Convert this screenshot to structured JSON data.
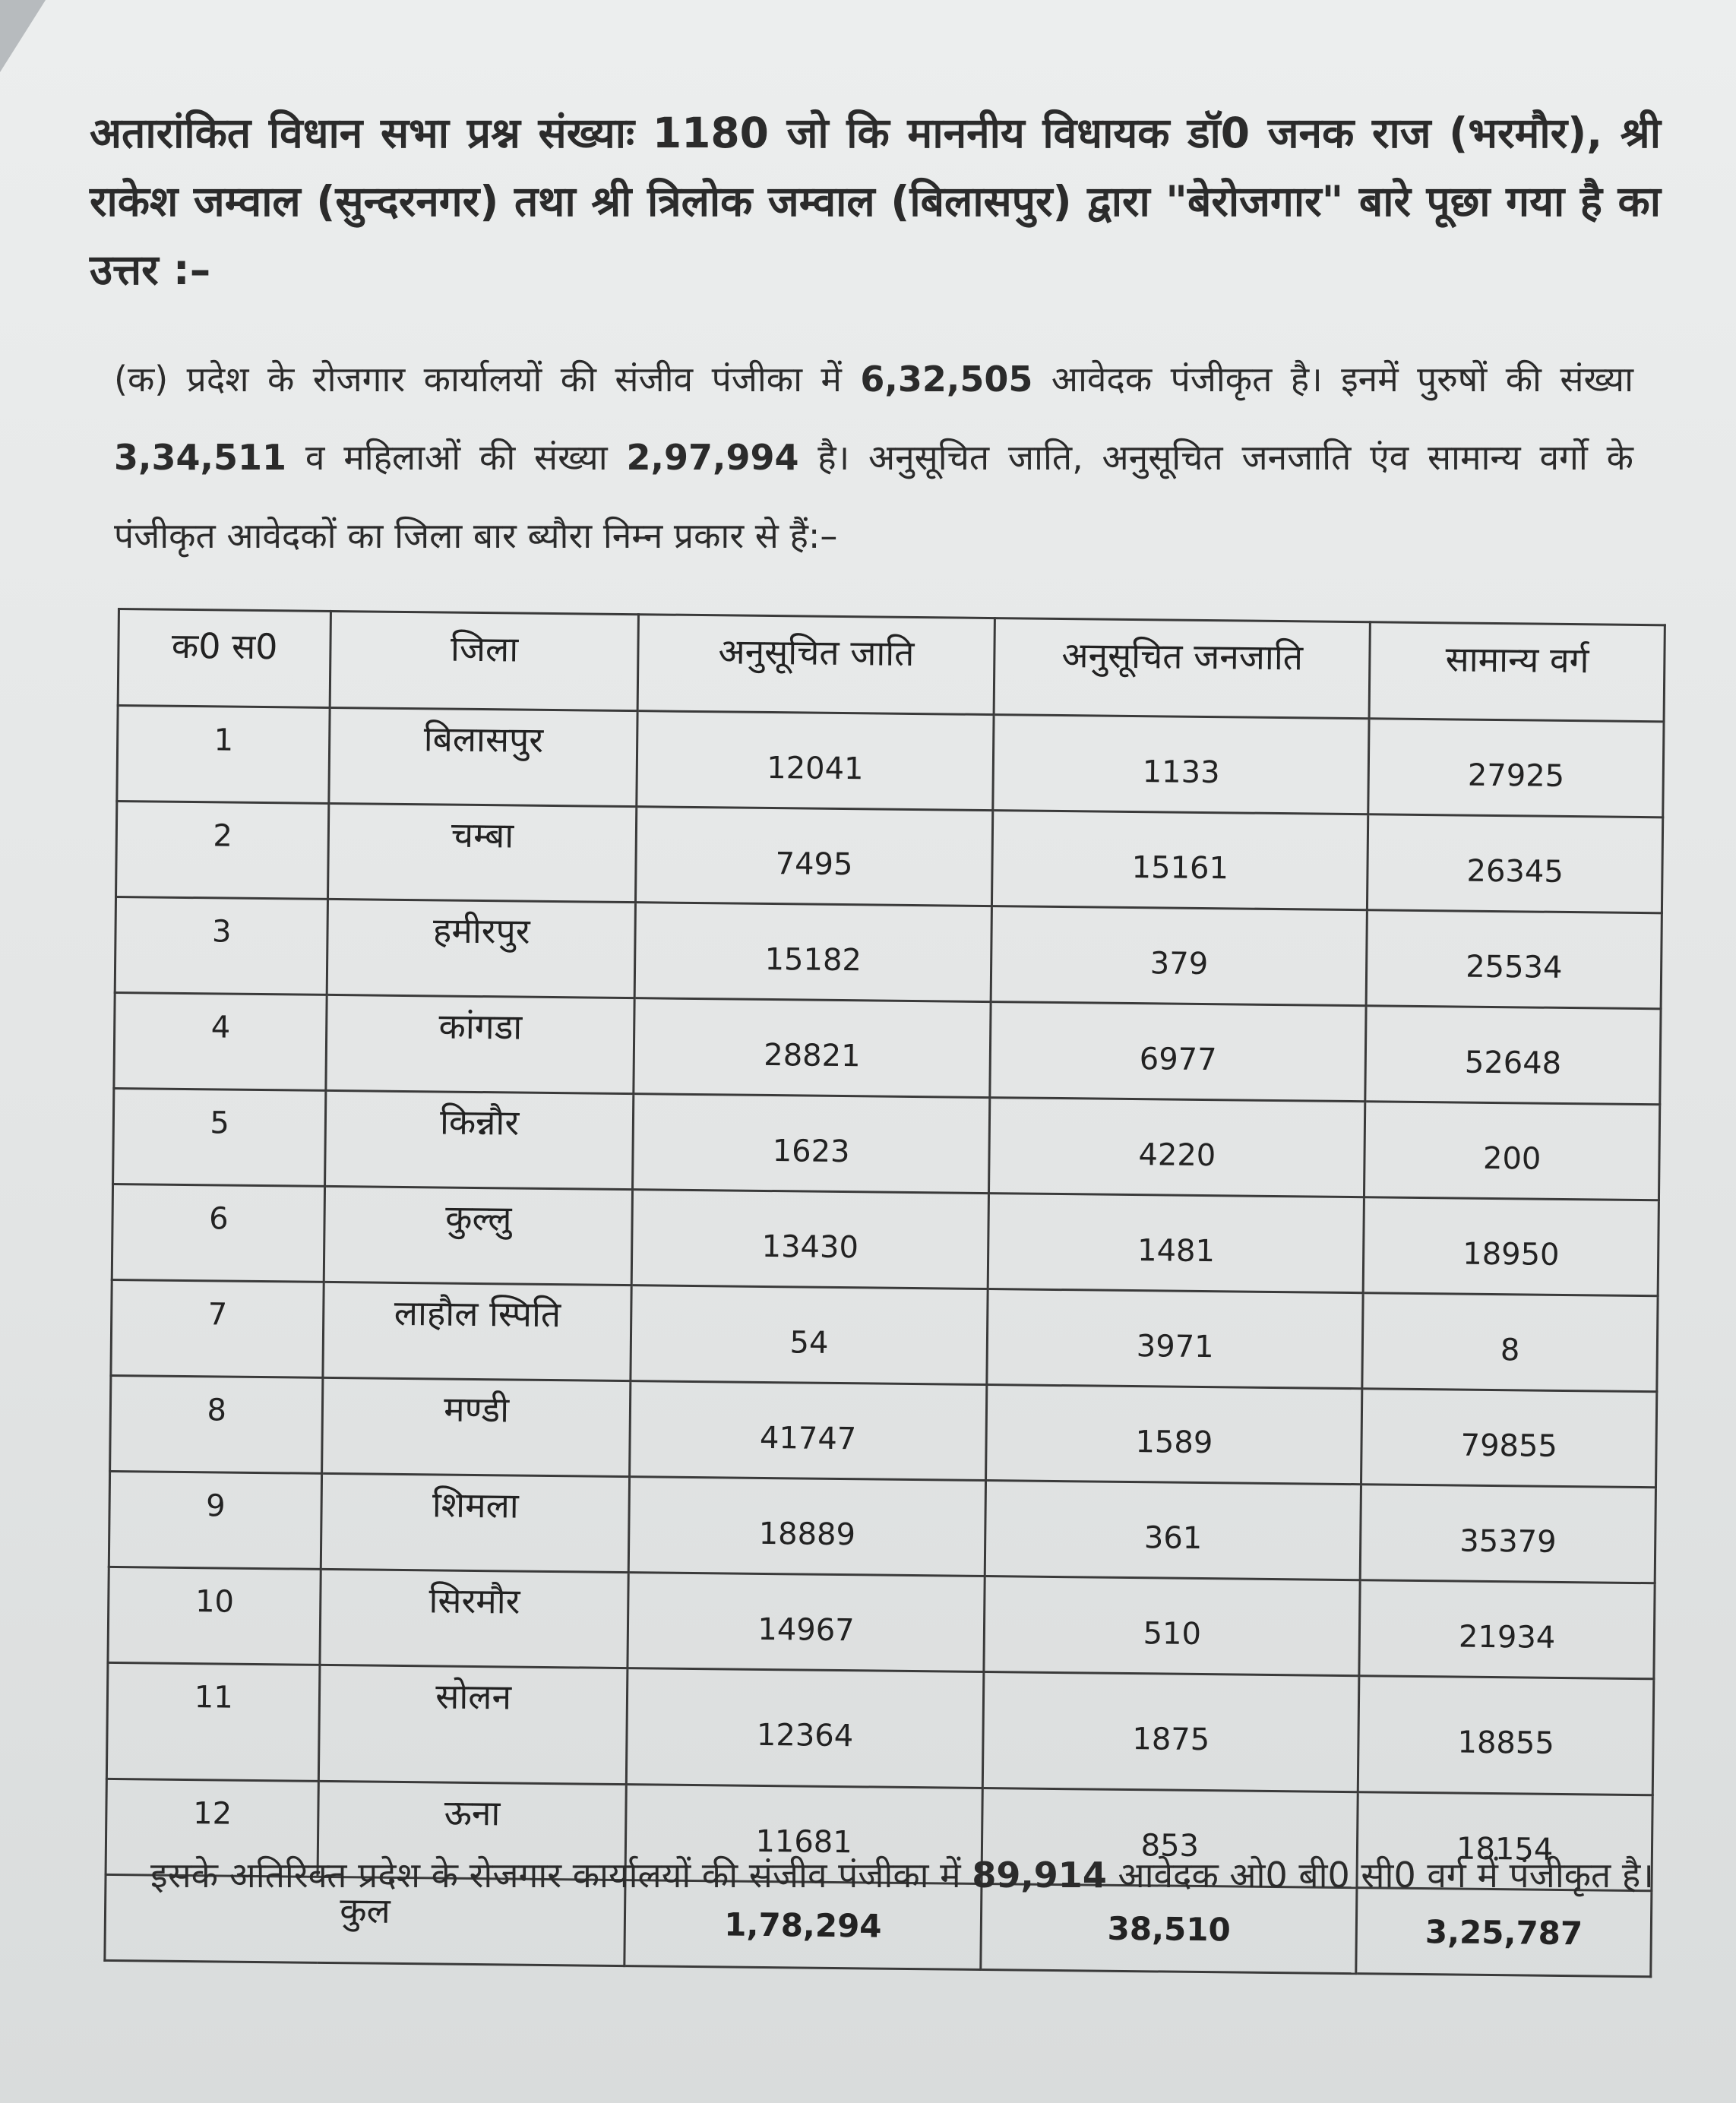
{
  "heading": {
    "prefix": "अतारांकित",
    "rest": "विधान सभा प्रश्न संख्याः 1180 जो कि माननीय विधायक डॉ0 जनक राज (भरमौर), श्री राकेश जम्वाल (सुन्दरनगर) तथा श्री त्रिलोक जम्वाल (बिलासपुर) द्वारा \"बेरोजगार\" बारे पूछा गया है का उत्तर :–"
  },
  "intro": {
    "t1": "(क) प्रदेश के रोजगार कार्यालयों की संजीव पंजीका में ",
    "total_registered": "6,32,505",
    "t2": " आवेदक पंजीकृत है। इनमें पुरुषों की संख्या ",
    "male_count": "3,34,511",
    "t3": " व महिलाओं की संख्या ",
    "female_count": "2,97,994",
    "t4": " है। अनुसूचित जाति, अनुसूचित जनजाति एंव सामान्य वर्गो के पंजीकृत आवेदकों का जिला बार ब्यौरा निम्न प्रकार से हैं:–"
  },
  "table": {
    "headers": [
      "क0 स0",
      "जिला",
      "अनुसूचित जाति",
      "अनुसूचित जनजाति",
      "सामान्य वर्ग"
    ],
    "rows": [
      [
        "1",
        "बिलासपुर",
        "12041",
        "1133",
        "27925"
      ],
      [
        "2",
        "चम्बा",
        "7495",
        "15161",
        "26345"
      ],
      [
        "3",
        "हमीरपुर",
        "15182",
        "379",
        "25534"
      ],
      [
        "4",
        "कांगडा",
        "28821",
        "6977",
        "52648"
      ],
      [
        "5",
        "किन्नौर",
        "1623",
        "4220",
        "200"
      ],
      [
        "6",
        "कुल्लु",
        "13430",
        "1481",
        "18950"
      ],
      [
        "7",
        "लाहौल स्पिति",
        "54",
        "3971",
        "8"
      ],
      [
        "8",
        "मण्डी",
        "41747",
        "1589",
        "79855"
      ],
      [
        "9",
        "शिमला",
        "18889",
        "361",
        "35379"
      ],
      [
        "10",
        "सिरमौर",
        "14967",
        "510",
        "21934"
      ],
      [
        "11",
        "सोलन",
        "12364",
        "1875",
        "18855"
      ],
      [
        "12",
        "ऊना",
        "11681",
        "853",
        "18154"
      ]
    ],
    "total": {
      "label": "कुल",
      "sc": "1,78,294",
      "st": "38,510",
      "general": "3,25,787"
    }
  },
  "footer": {
    "t1": "इसके अतिरिक्त प्रदेश के रोजगार कार्यालयों की संजीव पंजीका में ",
    "obc_count": "89,914",
    "t2": " आवेदक ओ0 बी0 सी0 वर्ग में पंजीकृत है।"
  }
}
